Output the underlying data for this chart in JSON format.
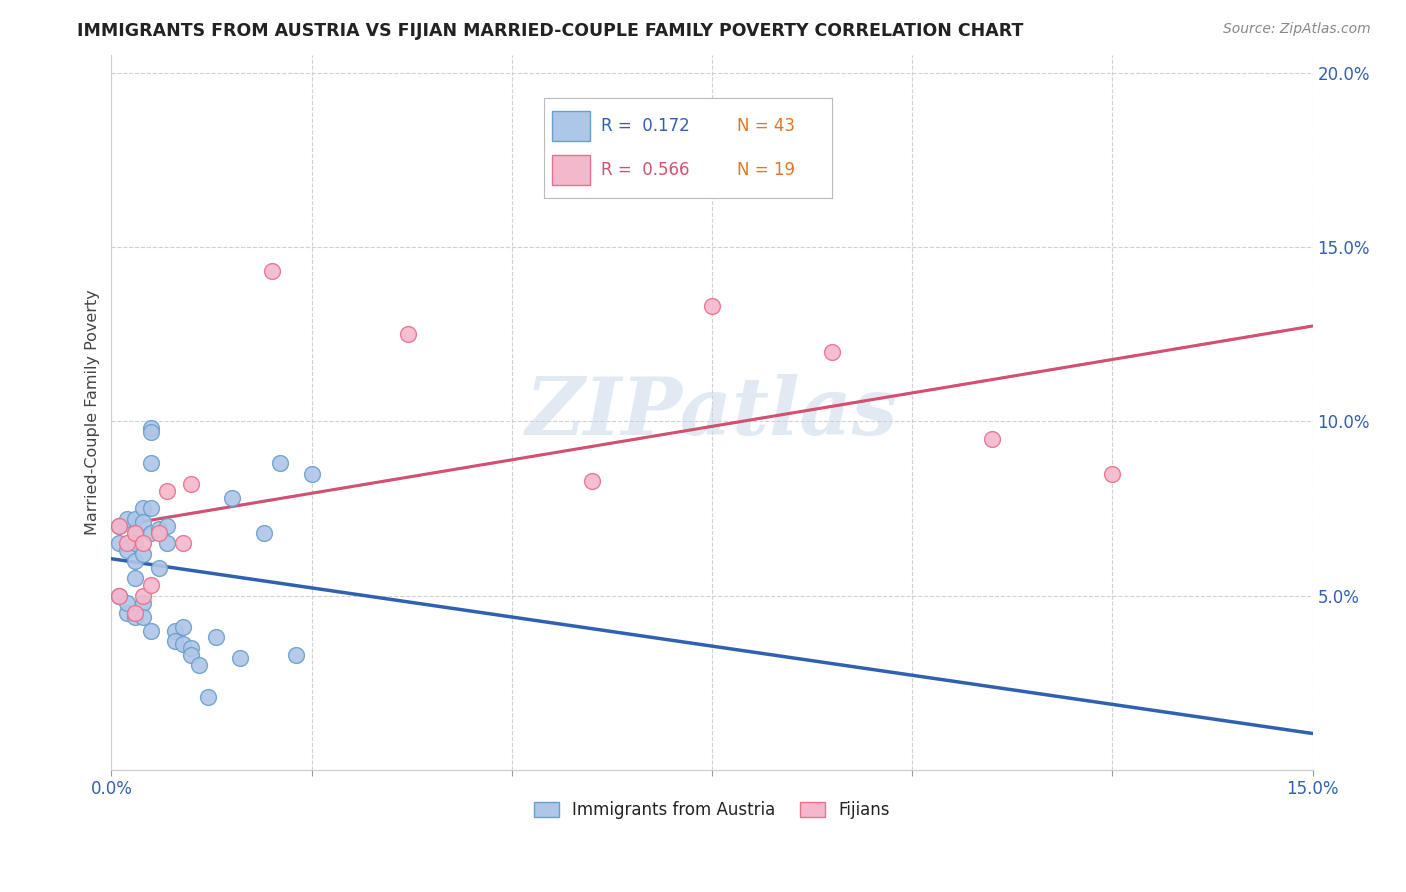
{
  "title": "IMMIGRANTS FROM AUSTRIA VS FIJIAN MARRIED-COUPLE FAMILY POVERTY CORRELATION CHART",
  "source": "Source: ZipAtlas.com",
  "ylabel": "Married-Couple Family Poverty",
  "xlim": [
    0.0,
    0.15
  ],
  "ylim": [
    0.0,
    0.205
  ],
  "xtick_positions": [
    0.0,
    0.025,
    0.05,
    0.075,
    0.1,
    0.125,
    0.15
  ],
  "xticklabels": [
    "0.0%",
    "",
    "",
    "",
    "",
    "",
    "15.0%"
  ],
  "ytick_positions": [
    0.0,
    0.05,
    0.1,
    0.15,
    0.2
  ],
  "ytick_labels_right": [
    "",
    "5.0%",
    "10.0%",
    "15.0%",
    "20.0%"
  ],
  "legend_r1": "R =  0.172",
  "legend_n1": "N = 43",
  "legend_r2": "R =  0.566",
  "legend_n2": "N = 19",
  "austria_color": "#aec6e8",
  "austria_edge": "#6a9fcb",
  "fijian_color": "#f4b8cc",
  "fijian_edge": "#e8708a",
  "austria_line_color": "#3060b0",
  "fijian_line_color": "#d45070",
  "dashed_line_color": "#aaaacc",
  "watermark_color": "#c5d5e8",
  "r_color": "#3060b0",
  "n_color": "#e07820",
  "r2_color": "#d45070",
  "austria_x": [
    0.001,
    0.001,
    0.001,
    0.002,
    0.002,
    0.002,
    0.002,
    0.003,
    0.003,
    0.003,
    0.003,
    0.003,
    0.003,
    0.004,
    0.004,
    0.004,
    0.004,
    0.004,
    0.005,
    0.005,
    0.005,
    0.005,
    0.005,
    0.005,
    0.006,
    0.006,
    0.007,
    0.007,
    0.008,
    0.008,
    0.009,
    0.009,
    0.01,
    0.01,
    0.011,
    0.012,
    0.013,
    0.015,
    0.016,
    0.019,
    0.021,
    0.023,
    0.025
  ],
  "austria_y": [
    0.05,
    0.065,
    0.07,
    0.045,
    0.063,
    0.072,
    0.048,
    0.068,
    0.055,
    0.044,
    0.072,
    0.065,
    0.06,
    0.075,
    0.071,
    0.062,
    0.048,
    0.044,
    0.098,
    0.097,
    0.088,
    0.075,
    0.068,
    0.04,
    0.069,
    0.058,
    0.07,
    0.065,
    0.04,
    0.037,
    0.041,
    0.036,
    0.035,
    0.033,
    0.03,
    0.021,
    0.038,
    0.078,
    0.032,
    0.068,
    0.088,
    0.033,
    0.085
  ],
  "fijian_x": [
    0.001,
    0.001,
    0.002,
    0.003,
    0.003,
    0.004,
    0.004,
    0.005,
    0.006,
    0.007,
    0.009,
    0.01,
    0.02,
    0.037,
    0.06,
    0.075,
    0.09,
    0.11,
    0.125
  ],
  "fijian_y": [
    0.07,
    0.05,
    0.065,
    0.068,
    0.045,
    0.065,
    0.05,
    0.053,
    0.068,
    0.08,
    0.065,
    0.082,
    0.143,
    0.125,
    0.083,
    0.133,
    0.12,
    0.095,
    0.085
  ]
}
